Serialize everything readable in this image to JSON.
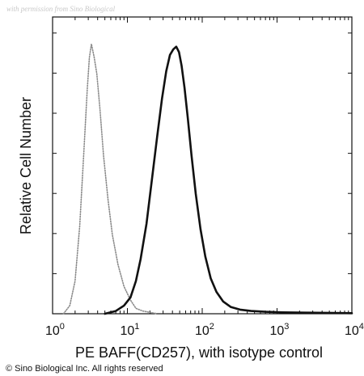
{
  "watermark": "with permission from Sino Biological",
  "copyright": "© Sino Biological Inc. All rights reserved",
  "chart_data": {
    "type": "line",
    "xlabel": "PE BAFF(CD257), with isotype control",
    "ylabel": "Relative Cell Number",
    "xscale": "log",
    "xlim": [
      1,
      10000
    ],
    "ylim": [
      0,
      1
    ],
    "x_ticks": [
      {
        "base": "10",
        "exp": "0"
      },
      {
        "base": "10",
        "exp": "1"
      },
      {
        "base": "10",
        "exp": "2"
      },
      {
        "base": "10",
        "exp": "3"
      },
      {
        "base": "10",
        "exp": "4"
      }
    ],
    "grid": false,
    "series": [
      {
        "role": "isotype-control",
        "style": "dotted",
        "color": "#8a8a8a",
        "x": [
          1.4,
          1.7,
          2.0,
          2.3,
          2.6,
          2.9,
          3.1,
          3.3,
          3.6,
          3.9,
          4.3,
          4.8,
          5.5,
          6.3,
          7.5,
          9,
          11,
          13,
          16,
          20,
          25
        ],
        "y": [
          0.0,
          0.03,
          0.12,
          0.32,
          0.58,
          0.82,
          0.94,
          0.99,
          0.94,
          0.88,
          0.75,
          0.58,
          0.42,
          0.29,
          0.18,
          0.1,
          0.05,
          0.02,
          0.01,
          0.005,
          0.0
        ]
      },
      {
        "role": "PE BAFF(CD257)",
        "style": "solid",
        "color": "#111111",
        "x": [
          5,
          7,
          9,
          11,
          13,
          15,
          18,
          21,
          25,
          29,
          33,
          37,
          41,
          45,
          49,
          53,
          58,
          64,
          72,
          82,
          95,
          110,
          130,
          155,
          190,
          240,
          320,
          450,
          700,
          1200,
          2500,
          6000,
          10000
        ],
        "y": [
          0.0,
          0.01,
          0.03,
          0.06,
          0.12,
          0.2,
          0.33,
          0.48,
          0.65,
          0.79,
          0.89,
          0.95,
          0.97,
          0.98,
          0.96,
          0.91,
          0.83,
          0.72,
          0.58,
          0.44,
          0.31,
          0.21,
          0.13,
          0.08,
          0.045,
          0.025,
          0.015,
          0.01,
          0.007,
          0.005,
          0.004,
          0.003,
          0.002
        ]
      }
    ]
  }
}
